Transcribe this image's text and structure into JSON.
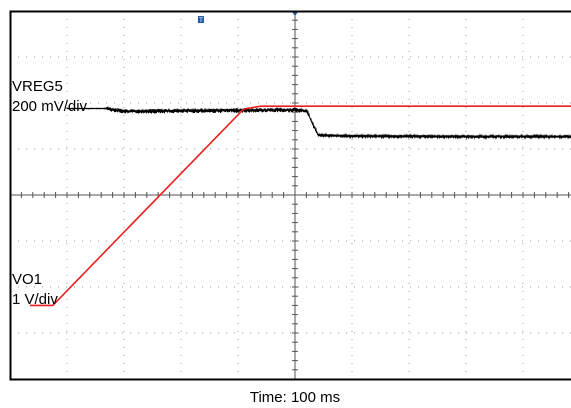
{
  "chart_data": {
    "type": "line",
    "xlabel": "Time: 100 ms",
    "xlim": [
      0,
      10
    ],
    "ylim": [
      0,
      8
    ],
    "divisions": {
      "x": 10,
      "y": 8
    },
    "grid": true,
    "trigger_marker": "T",
    "colors": {
      "vreg5": "#000000",
      "vo1": "#e8211f",
      "grid": "#9a9a9a",
      "frame": "#000000"
    },
    "series": [
      {
        "name": "VREG5",
        "scale": "200 mV/div",
        "color": "#000000",
        "noise_div": 0.08,
        "x": [
          1.0,
          1.7,
          2.0,
          3.0,
          4.0,
          5.0,
          5.2,
          5.4,
          6.0,
          8.0,
          10.0
        ],
        "y": [
          5.88,
          5.88,
          5.82,
          5.83,
          5.84,
          5.85,
          5.83,
          5.3,
          5.28,
          5.27,
          5.27
        ]
      },
      {
        "name": "VO1",
        "scale": "1 V/div",
        "color": "#e8211f",
        "x": [
          0.35,
          0.75,
          4.1,
          4.4,
          6.0,
          8.0,
          10.0
        ],
        "y": [
          1.6,
          1.6,
          5.87,
          5.93,
          5.93,
          5.93,
          5.93
        ]
      }
    ],
    "annotations": [
      {
        "text": "VREG5",
        "bind": "vreg5_name"
      },
      {
        "text": "200 mV/div",
        "bind": "vreg5_scale"
      },
      {
        "text": "VO1",
        "bind": "vo1_name"
      },
      {
        "text": "1 V/div",
        "bind": "vo1_scale"
      }
    ],
    "labels": {
      "vreg5_name": "VREG5",
      "vreg5_scale": "200 mV/div",
      "vo1_name": "VO1",
      "vo1_scale": "1 V/div"
    }
  }
}
